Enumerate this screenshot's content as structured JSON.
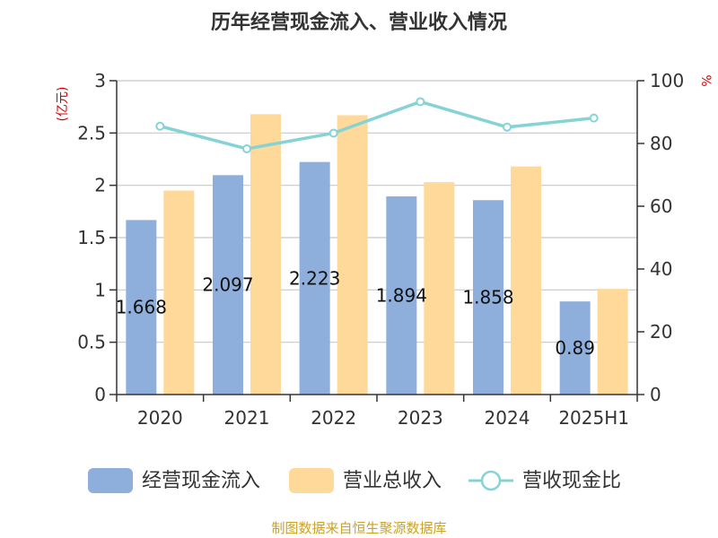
{
  "chart_data": {
    "type": "bar",
    "title": "历年经营现金流入、营业收入情况",
    "categories": [
      "2020",
      "2021",
      "2022",
      "2023",
      "2024",
      "2025H1"
    ],
    "series": [
      {
        "name": "经营现金流入",
        "type": "bar",
        "axis": "left",
        "color": "#8eaedb",
        "values": [
          1.668,
          2.097,
          2.223,
          1.894,
          1.858,
          0.89
        ],
        "labels": [
          "1.668",
          "2.097",
          "2.223",
          "1.894",
          "1.858",
          "0.89"
        ]
      },
      {
        "name": "营业总收入",
        "type": "bar",
        "axis": "left",
        "color": "#fed999",
        "values": [
          1.95,
          2.68,
          2.67,
          2.03,
          2.18,
          1.01
        ]
      },
      {
        "name": "营收现金比",
        "type": "line",
        "axis": "right",
        "color": "#86d3d6",
        "values": [
          85.5,
          78.3,
          83.3,
          93.3,
          85.2,
          88.1
        ]
      }
    ],
    "y_left": {
      "unit": "(亿元)",
      "ylim": [
        0,
        3
      ],
      "ticks": [
        "0",
        "0.5",
        "1",
        "1.5",
        "2",
        "2.5",
        "3"
      ]
    },
    "y_right": {
      "unit": "%",
      "ylim": [
        0,
        100
      ],
      "ticks": [
        "0",
        "20",
        "40",
        "60",
        "80",
        "100"
      ]
    },
    "grid": true,
    "legend_position": "bottom"
  },
  "source": "制图数据来自恒生聚源数据库"
}
